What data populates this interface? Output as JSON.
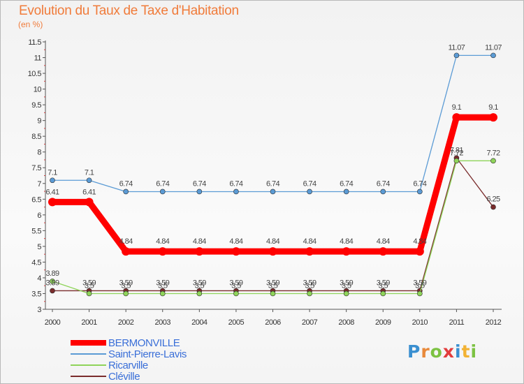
{
  "header": {
    "title": "Evolution du Taux de Taxe d'Habitation",
    "unit": "(en %)"
  },
  "logo": {
    "letters": [
      "P",
      "r",
      "o",
      "x",
      "i",
      "t",
      "i"
    ]
  },
  "chart_data": {
    "type": "line",
    "title": "Evolution du Taux de Taxe d'Habitation",
    "subtitle": "(en %)",
    "xlabel": "",
    "ylabel": "",
    "x": [
      2000,
      2001,
      2002,
      2003,
      2004,
      2005,
      2006,
      2007,
      2008,
      2009,
      2010,
      2011,
      2012
    ],
    "x_tick_labels": [
      "2000",
      "2001",
      "2002",
      "2003",
      "2004",
      "2005",
      "2006",
      "2007",
      "2008",
      "2009",
      "2010",
      "2011",
      "2012"
    ],
    "y_tick_labels": [
      "3",
      "3.5",
      "4",
      "4.5",
      "5",
      "5.5",
      "6",
      "6.5",
      "7",
      "7.5",
      "8",
      "8.5",
      "9",
      "9.5",
      "10",
      "10.5",
      "11",
      "11.5"
    ],
    "ylim": [
      3,
      11.5
    ],
    "grid": false,
    "legend_placement": "bottom-left",
    "series": [
      {
        "name": "BERMONVILLE",
        "color": "#ff0000",
        "values": [
          6.41,
          6.41,
          4.84,
          4.84,
          4.84,
          4.84,
          4.84,
          4.84,
          4.84,
          4.84,
          4.84,
          9.1,
          9.1
        ],
        "labels": [
          "6.41",
          "6.41",
          "4.84",
          "4.84",
          "4.84",
          "4.84",
          "4.84",
          "4.84",
          "4.84",
          "4.84",
          "4.84",
          "9.1",
          "9.1"
        ]
      },
      {
        "name": "Saint-Pierre-Lavis",
        "color": "#5b9bd5",
        "values": [
          7.1,
          7.1,
          6.74,
          6.74,
          6.74,
          6.74,
          6.74,
          6.74,
          6.74,
          6.74,
          6.74,
          11.07,
          11.07
        ],
        "labels": [
          "7.1",
          "7.1",
          "6.74",
          "6.74",
          "6.74",
          "6.74",
          "6.74",
          "6.74",
          "6.74",
          "6.74",
          "6.74",
          "11.07",
          "11.07"
        ]
      },
      {
        "name": "Ricarville",
        "color": "#8fd45a",
        "values": [
          3.89,
          3.5,
          3.5,
          3.5,
          3.5,
          3.5,
          3.5,
          3.5,
          3.5,
          3.5,
          3.5,
          7.72,
          7.72
        ],
        "labels": [
          "3.89",
          "3.5",
          "3.5",
          "3.5",
          "3.5",
          "3.5",
          "3.5",
          "3.5",
          "3.5",
          "3.5",
          "3.5",
          "7.72",
          "7.72"
        ]
      },
      {
        "name": "Cléville",
        "color": "#7a2c2c",
        "values": [
          3.59,
          3.59,
          3.59,
          3.59,
          3.59,
          3.59,
          3.59,
          3.59,
          3.59,
          3.59,
          3.59,
          7.81,
          6.25
        ],
        "labels": [
          "3.59",
          "3.59",
          "3.59",
          "3.59",
          "3.59",
          "3.59",
          "3.59",
          "3.59",
          "3.59",
          "3.59",
          "3.59",
          "7.81",
          "6.25"
        ]
      }
    ]
  }
}
